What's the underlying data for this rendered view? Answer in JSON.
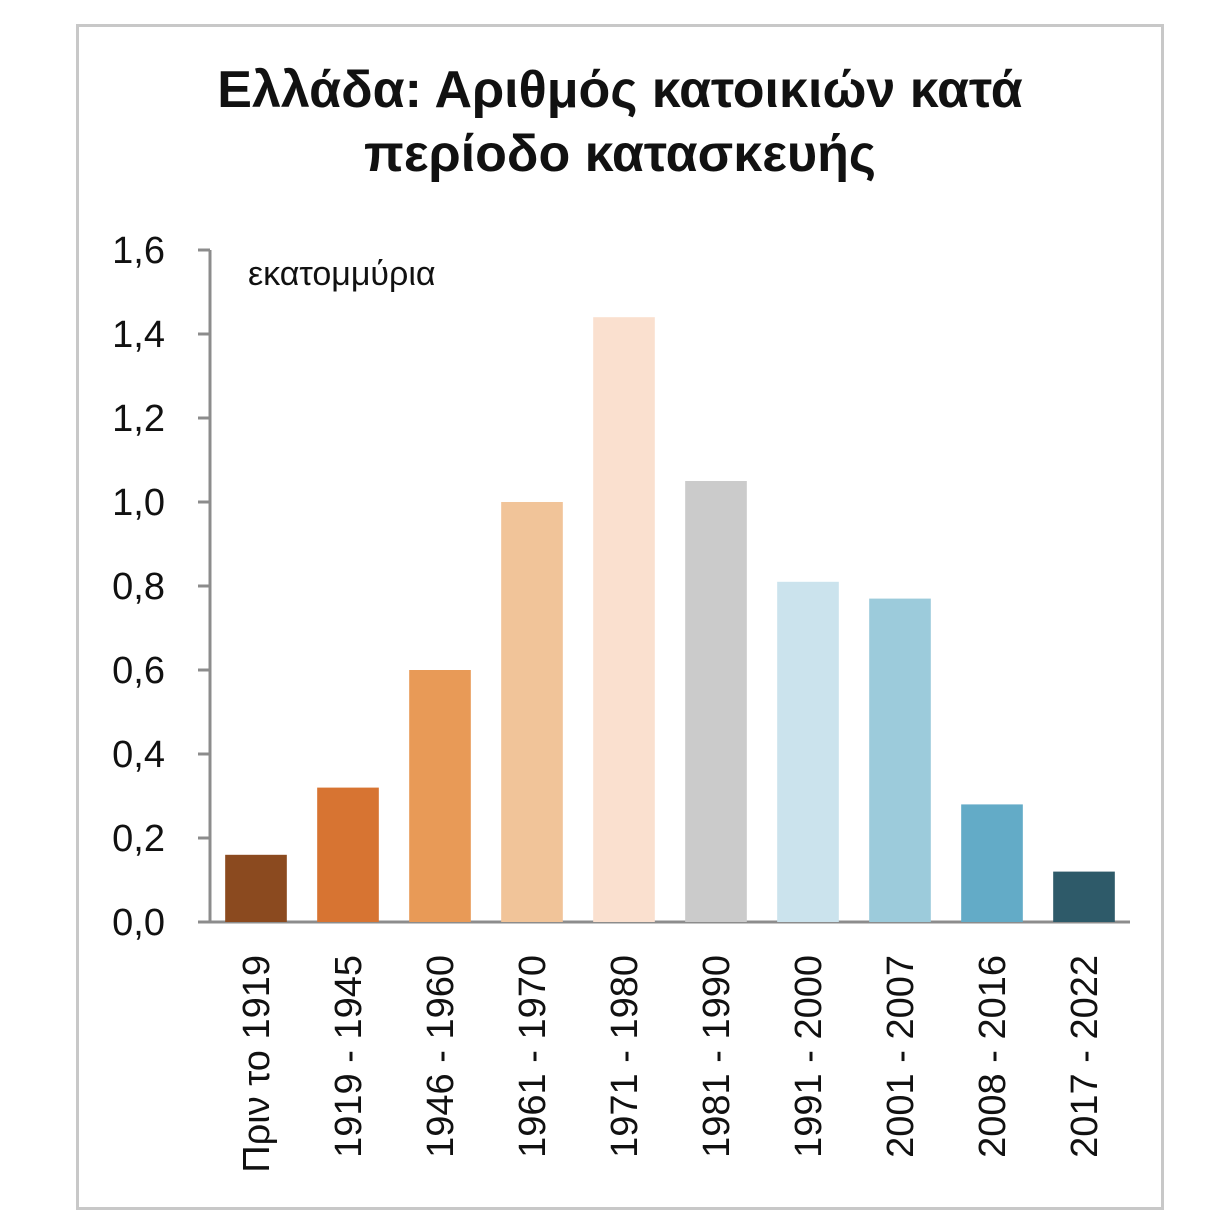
{
  "chart_data": {
    "type": "bar",
    "title_line1": "Ελλάδα: Αριθμός κατοικιών κατά",
    "title_line2": "περίοδο κατασκευής",
    "unit_label": "εκατομμύρια",
    "categories": [
      "Πριν το 1919",
      "1919 - 1945",
      "1946 - 1960",
      "1961 - 1970",
      "1971 - 1980",
      "1981 - 1990",
      "1991 - 2000",
      "2001 - 2007",
      "2008 - 2016",
      "2017 - 2022"
    ],
    "values": [
      0.16,
      0.32,
      0.6,
      1.0,
      1.44,
      1.05,
      0.81,
      0.77,
      0.28,
      0.12
    ],
    "colors": [
      "#8b4a1f",
      "#d77432",
      "#e89a57",
      "#f1c499",
      "#fae0cf",
      "#cbcbcb",
      "#cbe3ed",
      "#9ccbdb",
      "#63abc7",
      "#2e5a69"
    ],
    "ylim": [
      0,
      1.6
    ],
    "yticks": [
      0,
      0.2,
      0.4,
      0.6,
      0.8,
      1.0,
      1.2,
      1.4,
      1.6
    ],
    "ytick_labels": [
      "0,0",
      "0,2",
      "0,4",
      "0,6",
      "0,8",
      "1,0",
      "1,2",
      "1,4",
      "1,6"
    ],
    "xlabel": "",
    "ylabel": ""
  }
}
